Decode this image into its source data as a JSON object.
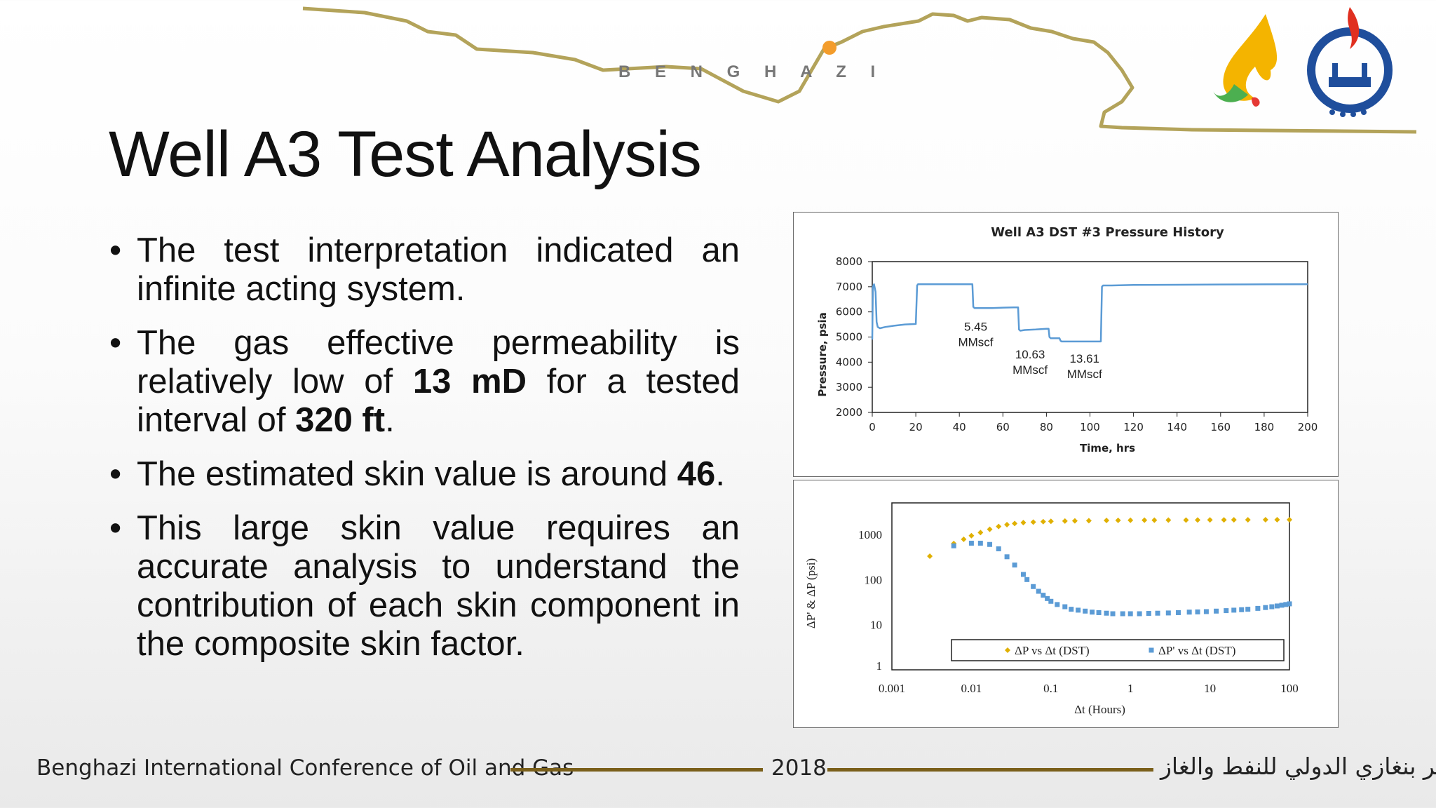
{
  "banner": {
    "city_label": "B E N G H A Z I"
  },
  "slide": {
    "title": "Well A3 Test Analysis",
    "bullets": [
      {
        "parts": [
          {
            "text": "The test interpretation indicated an infinite acting system.",
            "bold": false
          }
        ]
      },
      {
        "parts": [
          {
            "text": "The gas effective permeability is relatively low of ",
            "bold": false
          },
          {
            "text": "13 mD",
            "bold": true
          },
          {
            "text": " for a tested interval of ",
            "bold": false
          },
          {
            "text": "320 ft",
            "bold": true
          },
          {
            "text": ".",
            "bold": false
          }
        ]
      },
      {
        "parts": [
          {
            "text": "The estimated skin value is around ",
            "bold": false
          },
          {
            "text": "46",
            "bold": true
          },
          {
            "text": ".",
            "bold": false
          }
        ]
      },
      {
        "parts": [
          {
            "text": "This large skin value requires an accurate analysis to understand the contribution of each skin component in the composite skin factor.",
            "bold": false
          }
        ]
      }
    ]
  },
  "footer": {
    "left": "Benghazi International Conference of Oil and Gas",
    "year": "2018",
    "right": "مؤتمر بنغازي الدولي للنفط والغاز",
    "line_color": "#7a5f1a"
  },
  "colors": {
    "series_blue": "#5b9bd5",
    "series_gold": "#e0b000",
    "banner_line": "#b3a35a",
    "logo_blue": "#1f4e9c",
    "logo_red": "#e03020"
  },
  "chart_data": [
    {
      "type": "line",
      "title": "Well A3 DST #3 Pressure History",
      "xlabel": "Time, hrs",
      "ylabel": "Pressure, psia",
      "xlim": [
        0,
        200
      ],
      "ylim": [
        2000,
        8000
      ],
      "xticks": [
        0,
        20,
        40,
        60,
        80,
        100,
        120,
        140,
        160,
        180,
        200
      ],
      "yticks": [
        2000,
        3000,
        4000,
        5000,
        6000,
        7000,
        8000
      ],
      "grid": false,
      "series": [
        {
          "x": [
            0,
            0.3,
            0.8,
            1.5,
            2.0,
            2.5,
            3.5,
            6,
            10,
            15,
            20,
            20.6,
            21,
            25,
            30,
            40,
            46,
            46.4,
            47,
            50,
            55,
            60,
            65,
            67,
            67.4,
            68,
            70,
            75,
            80,
            81,
            81.4,
            82,
            85,
            86,
            86.5,
            87,
            88,
            92,
            96,
            100,
            105,
            105.5,
            106,
            110,
            120,
            140,
            160,
            180,
            200
          ],
          "y": [
            4900,
            7000,
            7100,
            6800,
            5600,
            5400,
            5350,
            5400,
            5450,
            5500,
            5520,
            7050,
            7100,
            7100,
            7100,
            7100,
            7100,
            6200,
            6150,
            6150,
            6150,
            6170,
            6180,
            6180,
            5300,
            5250,
            5280,
            5300,
            5330,
            5330,
            5000,
            4950,
            4950,
            4950,
            4850,
            4820,
            4820,
            4820,
            4820,
            4820,
            4820,
            7000,
            7050,
            7050,
            7070,
            7080,
            7090,
            7095,
            7100
          ],
          "color": "#5b9bd5"
        }
      ],
      "annotations": [
        {
          "lines": [
            "5.45",
            "MMscf"
          ],
          "x": 47.5,
          "y": 5250
        },
        {
          "lines": [
            "10.63",
            "MMscf"
          ],
          "x": 72.5,
          "y": 4150
        },
        {
          "lines": [
            "13.61",
            "MMscf"
          ],
          "x": 97.5,
          "y": 3980
        }
      ]
    },
    {
      "type": "scatter",
      "xlabel": "Δt (Hours)",
      "ylabel": "ΔP' & ΔP (psi)",
      "xscale": "log",
      "yscale": "log",
      "xlim": [
        0.001,
        100
      ],
      "ylim": [
        1,
        5000
      ],
      "xticks": [
        "0.001",
        "0.01",
        "0.1",
        "1",
        "10",
        "100"
      ],
      "yticks": [
        "1",
        "10",
        "100",
        "1000"
      ],
      "grid": false,
      "legend_position": "bottom",
      "series": [
        {
          "name": "ΔP vs Δt (DST)",
          "marker": "diamond",
          "color": "#e0b000",
          "x": [
            0.003,
            0.006,
            0.008,
            0.01,
            0.013,
            0.017,
            0.022,
            0.028,
            0.035,
            0.045,
            0.06,
            0.08,
            0.1,
            0.15,
            0.2,
            0.3,
            0.5,
            0.7,
            1,
            1.5,
            2,
            3,
            5,
            7,
            10,
            15,
            20,
            30,
            50,
            70,
            100
          ],
          "y": [
            330,
            630,
            780,
            940,
            1100,
            1300,
            1500,
            1650,
            1750,
            1830,
            1880,
            1920,
            1950,
            1980,
            2000,
            2020,
            2040,
            2050,
            2060,
            2070,
            2075,
            2080,
            2085,
            2090,
            2095,
            2100,
            2105,
            2110,
            2115,
            2118,
            2120
          ]
        },
        {
          "name": "ΔP' vs Δt (DST)",
          "marker": "square",
          "color": "#5b9bd5",
          "x": [
            0.006,
            0.01,
            0.013,
            0.017,
            0.022,
            0.028,
            0.035,
            0.045,
            0.05,
            0.06,
            0.07,
            0.08,
            0.09,
            0.1,
            0.12,
            0.15,
            0.18,
            0.22,
            0.27,
            0.33,
            0.4,
            0.5,
            0.6,
            0.8,
            1,
            1.3,
            1.7,
            2.2,
            3,
            4,
            5.5,
            7,
            9,
            12,
            16,
            20,
            25,
            30,
            40,
            50,
            60,
            70,
            80,
            90,
            100
          ],
          "y": [
            560,
            640,
            640,
            600,
            480,
            320,
            210,
            130,
            100,
            70,
            55,
            45,
            38,
            33,
            28,
            25,
            22,
            21,
            20,
            19,
            18.5,
            18,
            17.5,
            17.5,
            17.5,
            17.5,
            17.8,
            18,
            18.2,
            18.5,
            19,
            19.2,
            19.5,
            20,
            20.5,
            21,
            21.5,
            22,
            23,
            24,
            25,
            26,
            27,
            28,
            29
          ]
        }
      ]
    }
  ]
}
